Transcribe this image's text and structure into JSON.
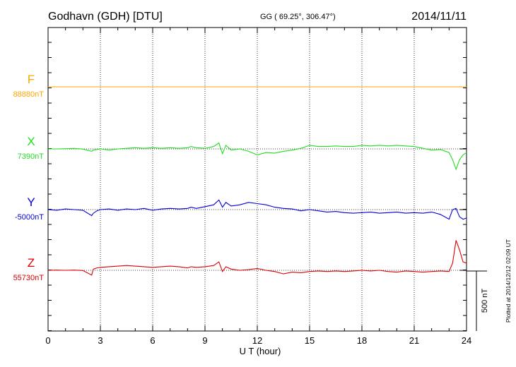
{
  "header": {
    "station": "Godhavn (GDH)  [DTU]",
    "coords": "GG ( 69.25°, 306.47°)",
    "date": "2014/11/11"
  },
  "footer_note": "Plotted at 2014/12/12 02:09 UT",
  "scale_label": "500 nT",
  "colors": {
    "F": "#ffa500",
    "X": "#22dd22",
    "Y": "#0000dd",
    "Z": "#dd0000"
  },
  "chart_data": {
    "type": "line",
    "xlabel": "U T (hour)",
    "xlim": [
      0,
      24
    ],
    "x_ticks": [
      0,
      3,
      6,
      9,
      12,
      15,
      18,
      21,
      24
    ],
    "x_tick_labels": [
      "0",
      "3",
      "6",
      "9",
      "12",
      "15",
      "18",
      "21",
      "24"
    ],
    "scale_bar_nT": 500,
    "grid": "vertical dotted every 3 hours",
    "x": [
      0,
      0.5,
      1,
      1.5,
      2,
      2.5,
      2.6,
      2.8,
      3,
      3.5,
      4,
      4.5,
      5,
      5.5,
      6,
      6.5,
      7,
      7.5,
      8,
      8.2,
      8.5,
      9,
      9.5,
      9.8,
      10,
      10.2,
      10.5,
      11,
      11.5,
      12,
      12.5,
      13,
      13.5,
      14,
      14.5,
      15,
      15.5,
      16,
      16.5,
      17,
      17.5,
      18,
      18.5,
      19,
      19.5,
      20,
      20.5,
      21,
      21.5,
      22,
      22.5,
      23,
      23.2,
      23.4,
      23.6,
      23.8,
      24
    ],
    "series": [
      {
        "name": "F",
        "baseline_label": "88880nT",
        "values": [
          88880,
          88880,
          88880,
          88880,
          88880,
          88880,
          88880,
          88880,
          88880,
          88880,
          88880,
          88880,
          88880,
          88880,
          88880,
          88880,
          88880,
          88880,
          88880,
          88880,
          88880,
          88880,
          88880,
          88880,
          88880,
          88880,
          88880,
          88880,
          88880,
          88880,
          88880,
          88880,
          88880,
          88880,
          88880,
          88880,
          88880,
          88880,
          88880,
          88880,
          88880,
          88880,
          88880,
          88880,
          88880,
          88880,
          88880,
          88880,
          88880,
          88880,
          88880,
          88880,
          88880,
          88880,
          88880,
          88880,
          88880
        ]
      },
      {
        "name": "X",
        "baseline_label": "7390nT",
        "values": [
          7390,
          7390,
          7392,
          7395,
          7388,
          7370,
          7380,
          7385,
          7390,
          7380,
          7390,
          7395,
          7400,
          7395,
          7400,
          7395,
          7400,
          7395,
          7400,
          7410,
          7400,
          7395,
          7410,
          7440,
          7350,
          7420,
          7380,
          7390,
          7370,
          7340,
          7360,
          7355,
          7370,
          7380,
          7395,
          7420,
          7410,
          7410,
          7415,
          7410,
          7410,
          7420,
          7415,
          7420,
          7415,
          7420,
          7415,
          7410,
          7395,
          7380,
          7385,
          7360,
          7300,
          7220,
          7300,
          7340,
          7360
        ]
      },
      {
        "name": "Y",
        "baseline_label": "-5000nT",
        "values": [
          -5000,
          -5005,
          -4995,
          -5000,
          -5005,
          -5050,
          -5030,
          -5010,
          -5000,
          -4995,
          -5005,
          -4995,
          -5000,
          -4990,
          -5005,
          -4995,
          -4990,
          -4995,
          -4990,
          -4980,
          -4990,
          -4975,
          -4960,
          -4920,
          -4980,
          -4940,
          -4970,
          -4960,
          -4940,
          -4950,
          -4960,
          -4980,
          -4990,
          -4995,
          -5010,
          -5000,
          -5010,
          -5020,
          -5015,
          -5025,
          -5030,
          -5025,
          -5020,
          -5030,
          -5025,
          -5020,
          -5030,
          -5025,
          -5030,
          -5020,
          -5040,
          -5080,
          -5000,
          -4990,
          -5060,
          -5080,
          -5070
        ]
      },
      {
        "name": "Z",
        "baseline_label": "55730nT",
        "values": [
          55730,
          55732,
          55730,
          55732,
          55728,
          55690,
          55740,
          55750,
          55755,
          55760,
          55765,
          55770,
          55765,
          55760,
          55755,
          55760,
          55765,
          55760,
          55750,
          55760,
          55755,
          55760,
          55770,
          55800,
          55720,
          55760,
          55740,
          55730,
          55735,
          55745,
          55730,
          55720,
          55700,
          55715,
          55710,
          55720,
          55725,
          55720,
          55725,
          55720,
          55725,
          55730,
          55725,
          55730,
          55720,
          55715,
          55725,
          55720,
          55715,
          55720,
          55725,
          55720,
          55790,
          55980,
          55900,
          55800,
          55790
        ]
      }
    ]
  }
}
